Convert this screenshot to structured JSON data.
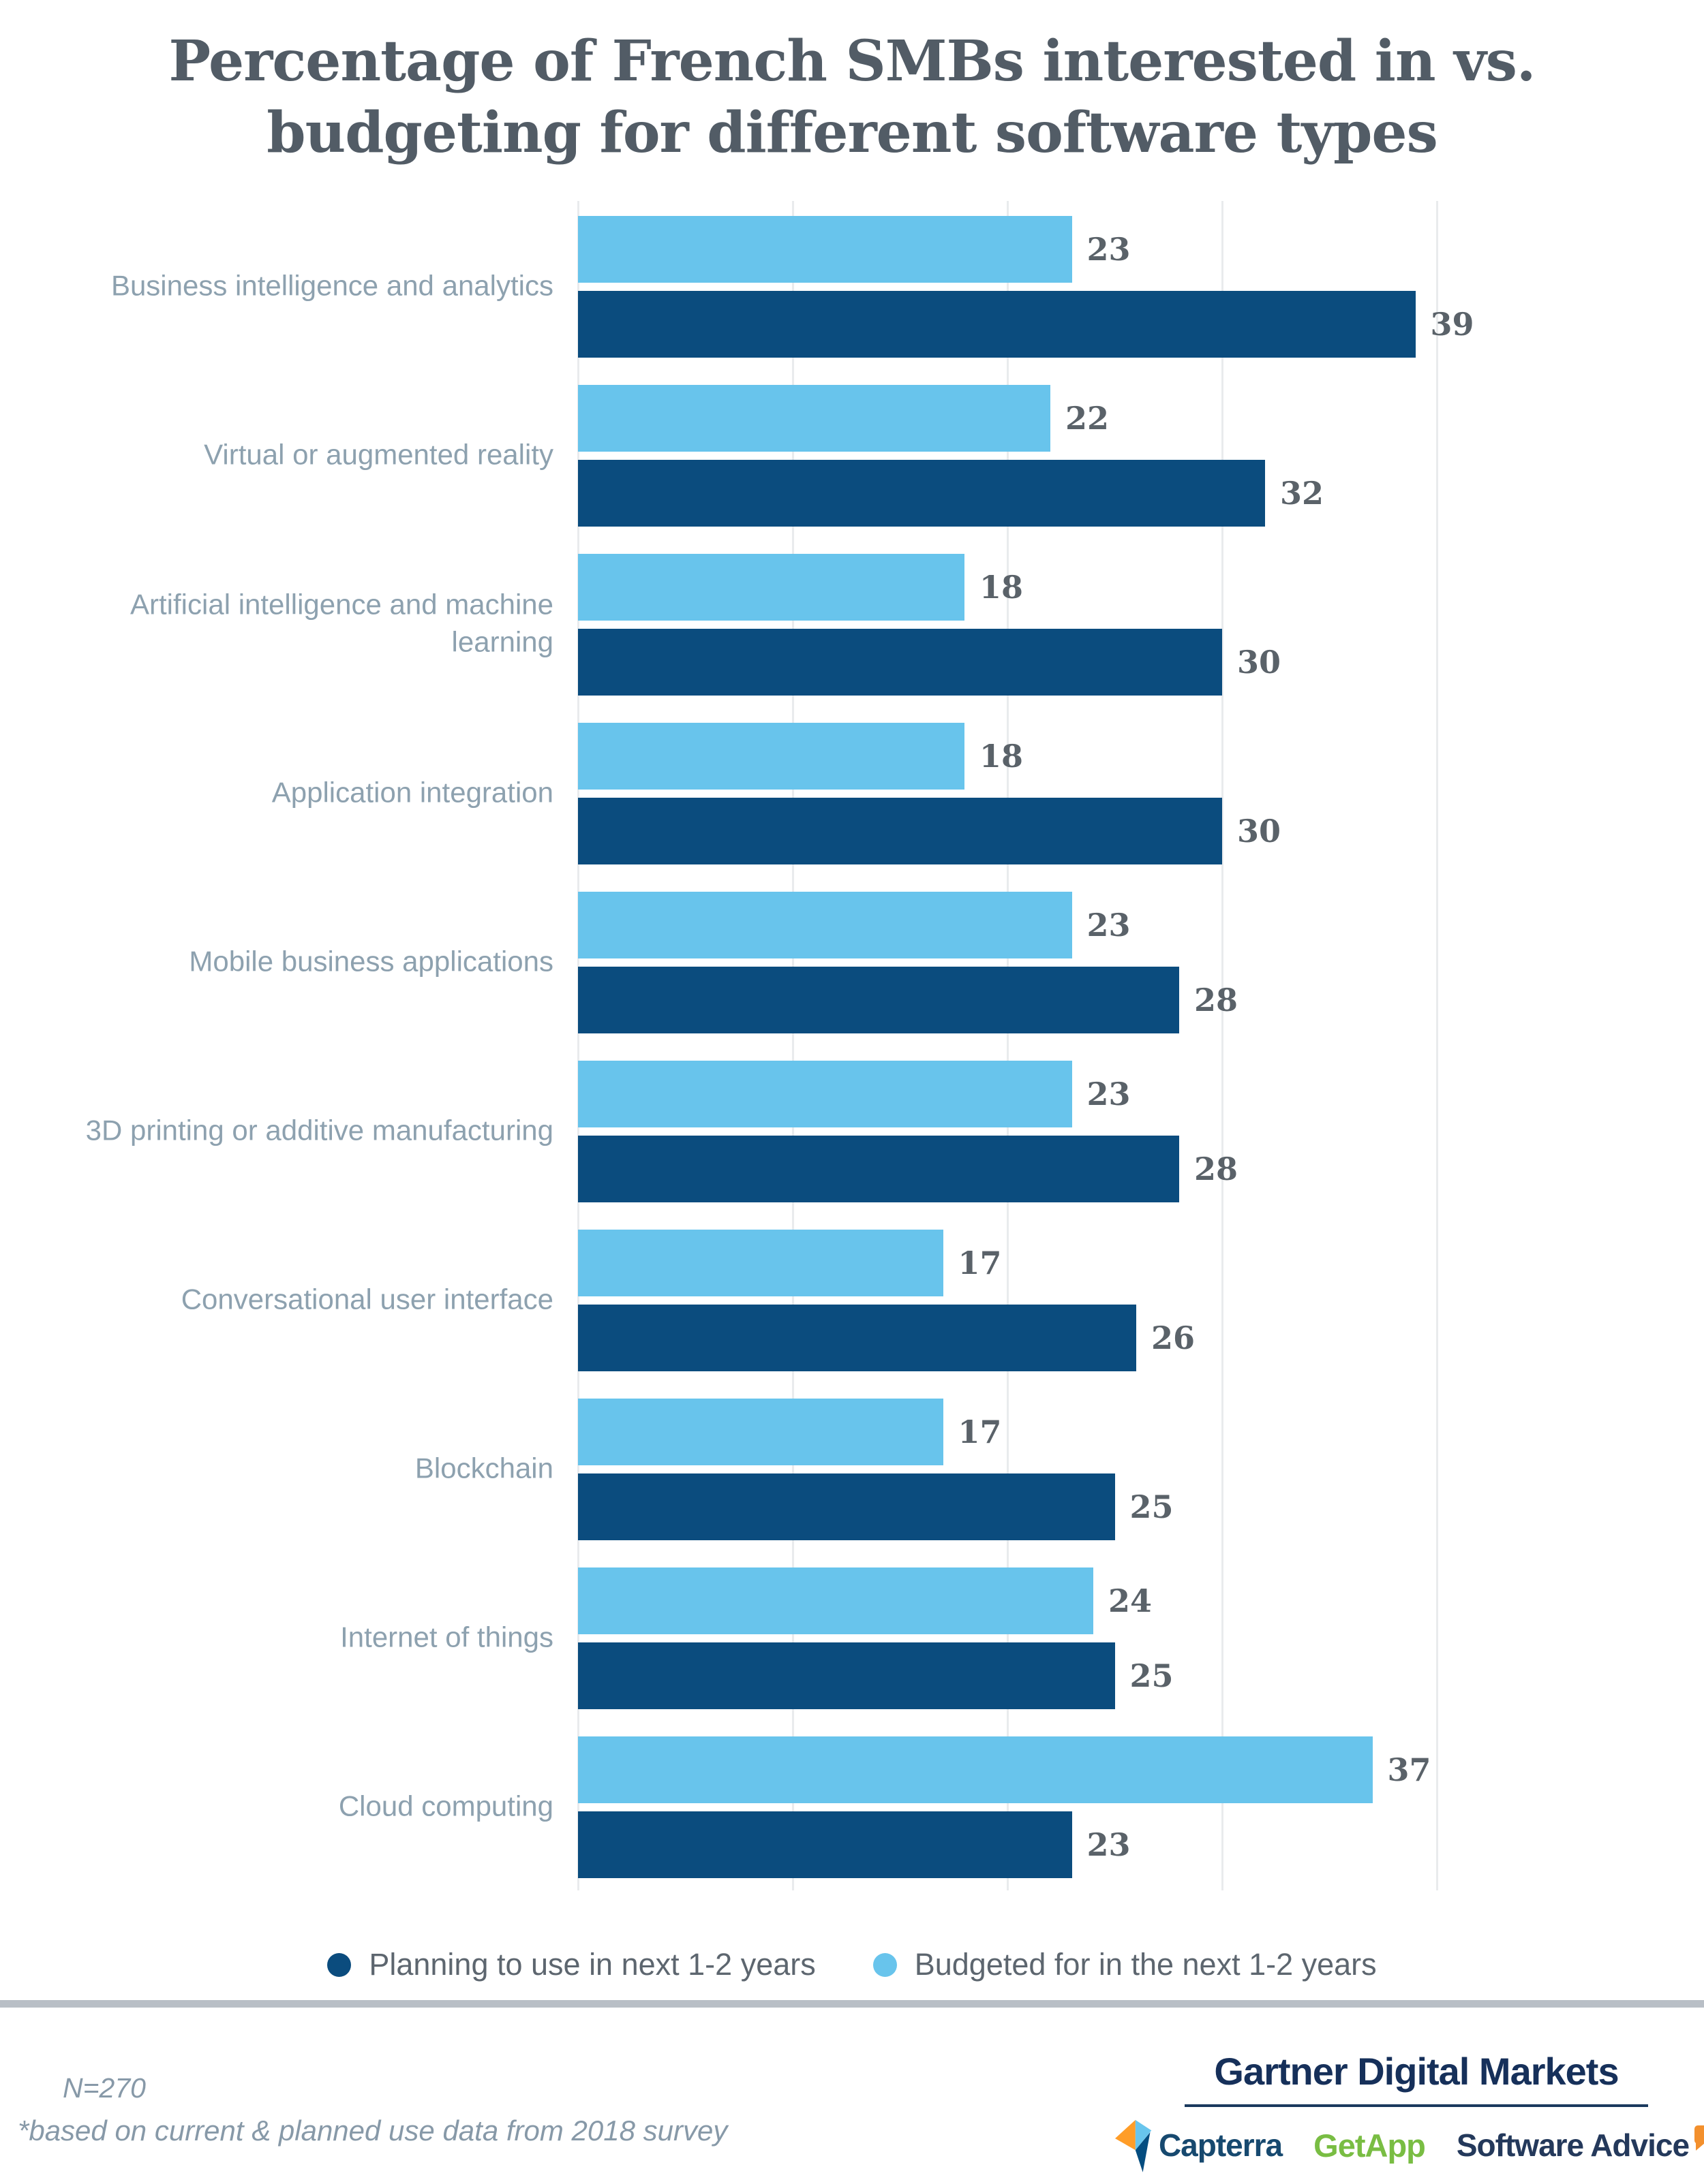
{
  "title": {
    "line1": "Percentage of French SMBs interested in vs.",
    "line2": "budgeting for different software types"
  },
  "chart_data": {
    "type": "bar",
    "orientation": "horizontal",
    "title": "Percentage of French SMBs interested in vs. budgeting for different software types",
    "categories": [
      "Business intelligence and analytics",
      "Virtual or augmented reality",
      "Artificial intelligence and machine learning",
      "Application integration",
      "Mobile business applications",
      "3D printing or additive manufacturing",
      "Conversational user interface",
      "Blockchain",
      "Internet of things",
      "Cloud computing"
    ],
    "series": [
      {
        "name": "Budgeted for in the next 1-2 years",
        "color": "#68c4ec",
        "position_in_group": "top",
        "values": [
          23,
          22,
          18,
          18,
          23,
          23,
          17,
          17,
          24,
          37
        ]
      },
      {
        "name": "Planning to use in next 1-2 years",
        "color": "#0b4c7e",
        "position_in_group": "bottom",
        "values": [
          39,
          32,
          30,
          30,
          28,
          28,
          26,
          25,
          25,
          23
        ]
      }
    ],
    "xlim": [
      0,
      40
    ],
    "gridlines": [
      0,
      10,
      20,
      30,
      40
    ],
    "grid": "vertical-only",
    "value_labels": "end-of-bar",
    "legend_position": "bottom"
  },
  "legend": {
    "items": [
      {
        "label": "Planning to use in next 1-2 years",
        "color": "#0b4c7e"
      },
      {
        "label": "Budgeted for in the next 1-2 years",
        "color": "#68c4ec"
      }
    ]
  },
  "footer": {
    "sample_size": "N=270",
    "footnote": "*based on current & planned use data from 2018 survey"
  },
  "branding": {
    "name": "Gartner Digital Markets",
    "logos": [
      {
        "label": "Capterra"
      },
      {
        "label": "GetApp"
      },
      {
        "label": "Software Advice"
      }
    ]
  }
}
